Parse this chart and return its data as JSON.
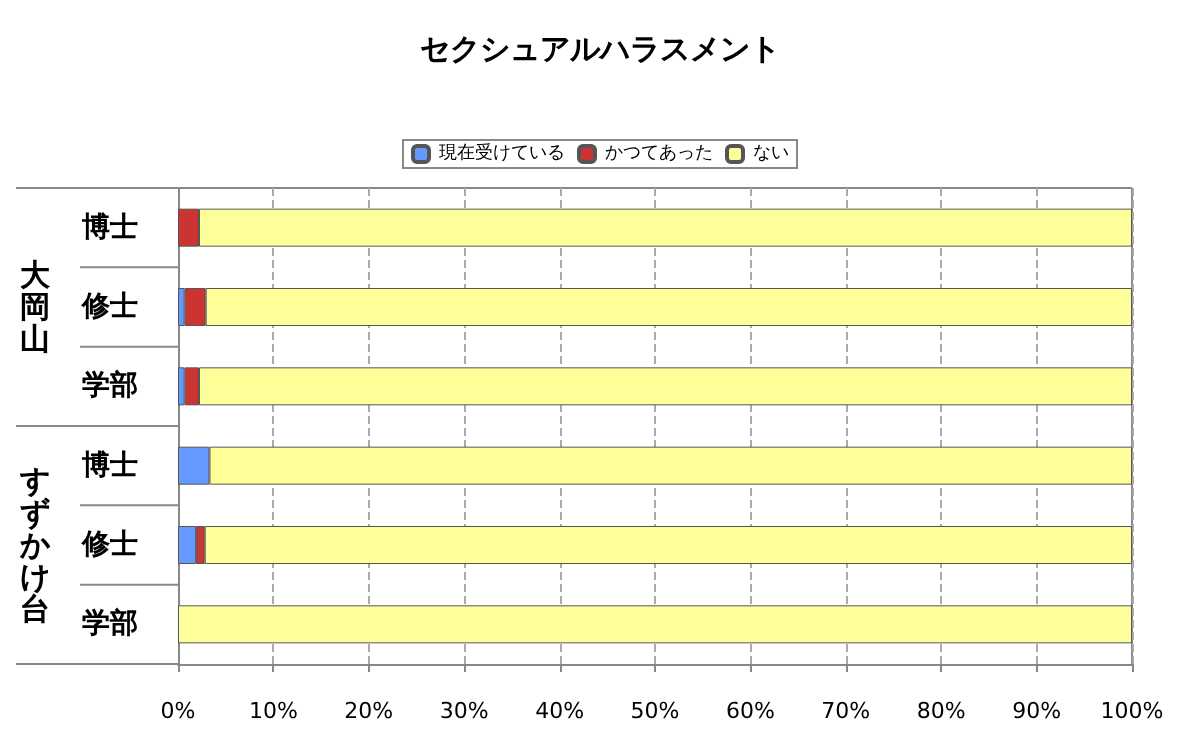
{
  "chart_data": {
    "type": "bar",
    "orientation": "horizontal",
    "stacked": true,
    "title": "セクシュアルハラスメント",
    "categories": [
      "博士",
      "修士",
      "学部",
      "博士",
      "修士",
      "学部"
    ],
    "series": [
      {
        "name": "現在受けている",
        "color": "#6699ff",
        "values": [
          0,
          0.7,
          0.7,
          3.3,
          1.9,
          0
        ]
      },
      {
        "name": "かつてあった",
        "color": "#cc3333",
        "values": [
          2.2,
          2.2,
          1.5,
          0,
          0.9,
          0
        ]
      },
      {
        "name": "ない",
        "color": "#ffff99",
        "values": [
          97.8,
          97.1,
          97.8,
          96.7,
          97.2,
          100
        ]
      }
    ],
    "xlim": [
      0,
      100
    ],
    "xticks": [
      {
        "value": 0,
        "label": "0%"
      },
      {
        "value": 10,
        "label": "10%"
      },
      {
        "value": 20,
        "label": "20%"
      },
      {
        "value": 30,
        "label": "30%"
      },
      {
        "value": 40,
        "label": "40%"
      },
      {
        "value": 50,
        "label": "50%"
      },
      {
        "value": 60,
        "label": "60%"
      },
      {
        "value": 70,
        "label": "70%"
      },
      {
        "value": 80,
        "label": "80%"
      },
      {
        "value": 90,
        "label": "90%"
      },
      {
        "value": 100,
        "label": "100%"
      }
    ],
    "annotations": [
      "大岡山",
      "すずかけ台"
    ],
    "grid": "x",
    "legend": "top"
  }
}
